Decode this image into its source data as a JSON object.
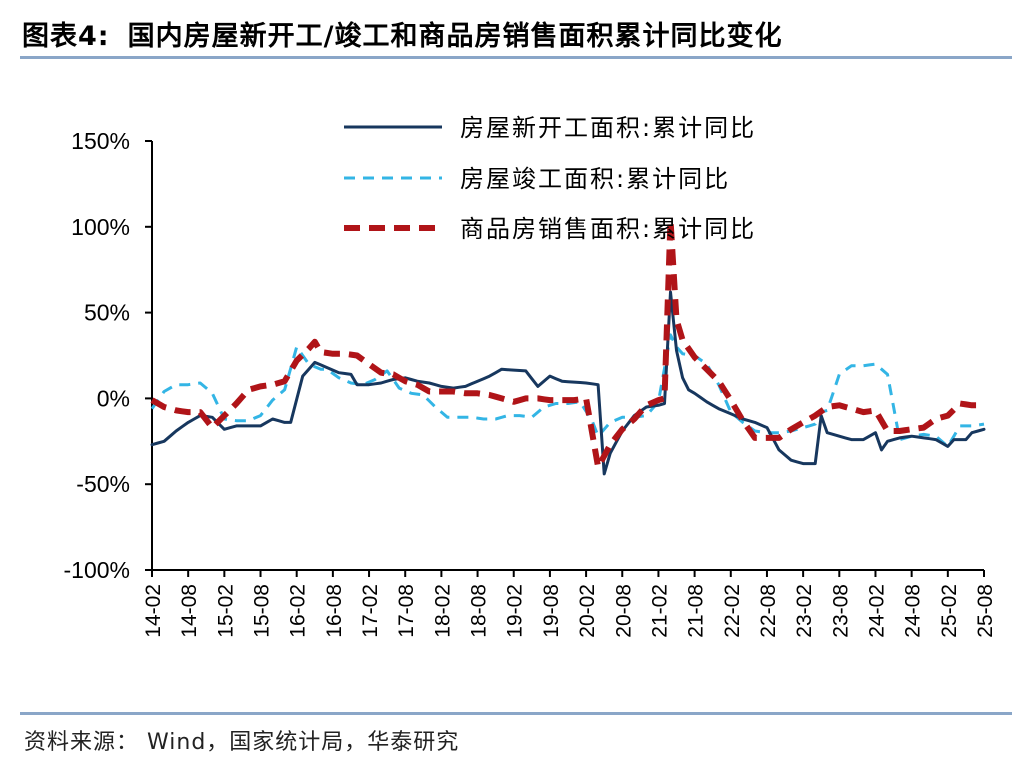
{
  "header": {
    "figure_number": "图表4:",
    "title": "国内房屋新开工/竣工和商品房销售面积累计同比变化"
  },
  "footer": {
    "source": "资料来源： Wind，国家统计局，华泰研究"
  },
  "chart_data": {
    "type": "line",
    "title": "国内房屋新开工/竣工和商品房销售面积累计同比变化",
    "xlabel": "",
    "ylabel": "",
    "ylim": [
      -100,
      150
    ],
    "y_ticks": [
      -100,
      -50,
      0,
      50,
      100,
      150
    ],
    "y_tick_labels": [
      "-100%",
      "-50%",
      "0%",
      "50%",
      "100%",
      "150%"
    ],
    "x_tick_labels": [
      "14-02",
      "14-08",
      "15-02",
      "15-08",
      "16-02",
      "16-08",
      "17-02",
      "17-08",
      "18-02",
      "18-08",
      "19-02",
      "19-08",
      "20-02",
      "20-08",
      "21-02",
      "21-08",
      "22-02",
      "22-08",
      "23-02",
      "23-08",
      "24-02",
      "24-08",
      "25-02",
      "25-08"
    ],
    "x_tick_index": [
      0,
      6,
      12,
      18,
      24,
      30,
      36,
      42,
      48,
      54,
      60,
      66,
      72,
      78,
      84,
      90,
      96,
      102,
      108,
      114,
      120,
      126,
      132,
      138
    ],
    "x_count": 139,
    "grid": false,
    "legend_position": "top-center",
    "colors": {
      "new_starts": "#17375e",
      "completions": "#33b5e5",
      "sales": "#b01418",
      "axis": "#000000"
    },
    "series": [
      {
        "name": "房屋新开工面积:累计同比",
        "style": "solid",
        "keyframes": [
          [
            0,
            -27
          ],
          [
            2,
            -25
          ],
          [
            4,
            -19
          ],
          [
            6,
            -14
          ],
          [
            8,
            -10
          ],
          [
            10,
            -11
          ],
          [
            12,
            -18
          ],
          [
            14,
            -16
          ],
          [
            16,
            -16
          ],
          [
            18,
            -16
          ],
          [
            20,
            -12
          ],
          [
            22,
            -14
          ],
          [
            23,
            -14
          ],
          [
            25,
            13
          ],
          [
            27,
            21
          ],
          [
            29,
            18
          ],
          [
            31,
            15
          ],
          [
            33,
            14
          ],
          [
            34,
            8
          ],
          [
            36,
            8
          ],
          [
            38,
            9
          ],
          [
            40,
            11
          ],
          [
            42,
            12
          ],
          [
            44,
            10
          ],
          [
            46,
            9
          ],
          [
            48,
            7
          ],
          [
            50,
            6
          ],
          [
            52,
            7
          ],
          [
            54,
            10
          ],
          [
            56,
            13
          ],
          [
            58,
            17
          ],
          [
            62,
            16
          ],
          [
            64,
            7
          ],
          [
            66,
            13
          ],
          [
            68,
            10
          ],
          [
            72,
            9
          ],
          [
            74,
            8
          ],
          [
            75,
            -44
          ],
          [
            76,
            -32
          ],
          [
            78,
            -19
          ],
          [
            80,
            -10
          ],
          [
            82,
            -5
          ],
          [
            84,
            -4
          ],
          [
            85,
            -3
          ],
          [
            86,
            62
          ],
          [
            87,
            28
          ],
          [
            88,
            12
          ],
          [
            89,
            5
          ],
          [
            90,
            3
          ],
          [
            92,
            -2
          ],
          [
            94,
            -6
          ],
          [
            96,
            -9
          ],
          [
            98,
            -12
          ],
          [
            100,
            -14
          ],
          [
            102,
            -17
          ],
          [
            104,
            -30
          ],
          [
            106,
            -36
          ],
          [
            108,
            -38
          ],
          [
            110,
            -38
          ],
          [
            111,
            -10
          ],
          [
            112,
            -20
          ],
          [
            114,
            -22
          ],
          [
            116,
            -24
          ],
          [
            118,
            -24
          ],
          [
            120,
            -20
          ],
          [
            121,
            -30
          ],
          [
            122,
            -25
          ],
          [
            124,
            -23
          ],
          [
            126,
            -22
          ],
          [
            128,
            -23
          ],
          [
            130,
            -24
          ],
          [
            132,
            -28
          ],
          [
            133,
            -24
          ],
          [
            135,
            -24
          ],
          [
            136,
            -20
          ],
          [
            138,
            -18
          ]
        ]
      },
      {
        "name": "房屋竣工面积:累计同比",
        "style": "dashed",
        "keyframes": [
          [
            0,
            -6
          ],
          [
            2,
            4
          ],
          [
            4,
            8
          ],
          [
            6,
            8
          ],
          [
            8,
            9
          ],
          [
            10,
            3
          ],
          [
            12,
            -12
          ],
          [
            14,
            -13
          ],
          [
            16,
            -13
          ],
          [
            18,
            -10
          ],
          [
            20,
            -1
          ],
          [
            22,
            5
          ],
          [
            24,
            30
          ],
          [
            26,
            20
          ],
          [
            28,
            17
          ],
          [
            29,
            17
          ],
          [
            31,
            12
          ],
          [
            33,
            9
          ],
          [
            35,
            8
          ],
          [
            37,
            11
          ],
          [
            39,
            16
          ],
          [
            41,
            6
          ],
          [
            43,
            3
          ],
          [
            45,
            2
          ],
          [
            47,
            -5
          ],
          [
            49,
            -11
          ],
          [
            51,
            -11
          ],
          [
            53,
            -11
          ],
          [
            55,
            -12
          ],
          [
            57,
            -12
          ],
          [
            59,
            -10
          ],
          [
            61,
            -10
          ],
          [
            63,
            -11
          ],
          [
            65,
            -5
          ],
          [
            67,
            -3
          ],
          [
            69,
            -3
          ],
          [
            71,
            -2
          ],
          [
            73,
            -13
          ],
          [
            74,
            -22
          ],
          [
            76,
            -14
          ],
          [
            78,
            -11
          ],
          [
            80,
            -11
          ],
          [
            82,
            -10
          ],
          [
            84,
            -2
          ],
          [
            86,
            37
          ],
          [
            87,
            30
          ],
          [
            88,
            26
          ],
          [
            90,
            25
          ],
          [
            92,
            20
          ],
          [
            94,
            8
          ],
          [
            96,
            -8
          ],
          [
            98,
            -14
          ],
          [
            100,
            -19
          ],
          [
            102,
            -20
          ],
          [
            104,
            -20
          ],
          [
            106,
            -19
          ],
          [
            108,
            -17
          ],
          [
            110,
            -15
          ],
          [
            111,
            -8
          ],
          [
            112,
            -7
          ],
          [
            114,
            14
          ],
          [
            116,
            19
          ],
          [
            118,
            19
          ],
          [
            120,
            20
          ],
          [
            122,
            14
          ],
          [
            124,
            -24
          ],
          [
            126,
            -22
          ],
          [
            128,
            -21
          ],
          [
            130,
            -22
          ],
          [
            132,
            -28
          ],
          [
            134,
            -16
          ],
          [
            136,
            -16
          ],
          [
            138,
            -15
          ]
        ]
      },
      {
        "name": "商品房销售面积:累计同比",
        "style": "long-dashed",
        "keyframes": [
          [
            0,
            -1
          ],
          [
            2,
            -5
          ],
          [
            4,
            -7
          ],
          [
            6,
            -8
          ],
          [
            8,
            -8
          ],
          [
            10,
            -17
          ],
          [
            12,
            -10
          ],
          [
            14,
            -3
          ],
          [
            16,
            5
          ],
          [
            18,
            7
          ],
          [
            20,
            8
          ],
          [
            22,
            10
          ],
          [
            24,
            22
          ],
          [
            26,
            29
          ],
          [
            27,
            33
          ],
          [
            28,
            27
          ],
          [
            30,
            26
          ],
          [
            32,
            26
          ],
          [
            34,
            25
          ],
          [
            36,
            20
          ],
          [
            38,
            15
          ],
          [
            40,
            14
          ],
          [
            42,
            10
          ],
          [
            44,
            8
          ],
          [
            46,
            4
          ],
          [
            48,
            4
          ],
          [
            50,
            4
          ],
          [
            52,
            3
          ],
          [
            54,
            3
          ],
          [
            56,
            2
          ],
          [
            58,
            0
          ],
          [
            60,
            -2
          ],
          [
            62,
            0
          ],
          [
            64,
            0
          ],
          [
            66,
            -1
          ],
          [
            68,
            -1
          ],
          [
            70,
            -1
          ],
          [
            72,
            0
          ],
          [
            74,
            -40
          ],
          [
            76,
            -27
          ],
          [
            78,
            -18
          ],
          [
            80,
            -12
          ],
          [
            82,
            -4
          ],
          [
            84,
            -1
          ],
          [
            85,
            0
          ],
          [
            86,
            104
          ],
          [
            87,
            46
          ],
          [
            88,
            34
          ],
          [
            90,
            24
          ],
          [
            92,
            17
          ],
          [
            94,
            10
          ],
          [
            96,
            -1
          ],
          [
            98,
            -13
          ],
          [
            100,
            -23
          ],
          [
            102,
            -23
          ],
          [
            104,
            -23
          ],
          [
            106,
            -18
          ],
          [
            108,
            -14
          ],
          [
            110,
            -10
          ],
          [
            112,
            -5
          ],
          [
            114,
            -4
          ],
          [
            116,
            -6
          ],
          [
            118,
            -8
          ],
          [
            120,
            -7
          ],
          [
            122,
            -19
          ],
          [
            124,
            -19
          ],
          [
            126,
            -18
          ],
          [
            128,
            -17
          ],
          [
            130,
            -12
          ],
          [
            132,
            -10
          ],
          [
            134,
            -3
          ],
          [
            136,
            -4
          ],
          [
            138,
            -4
          ]
        ]
      }
    ]
  }
}
